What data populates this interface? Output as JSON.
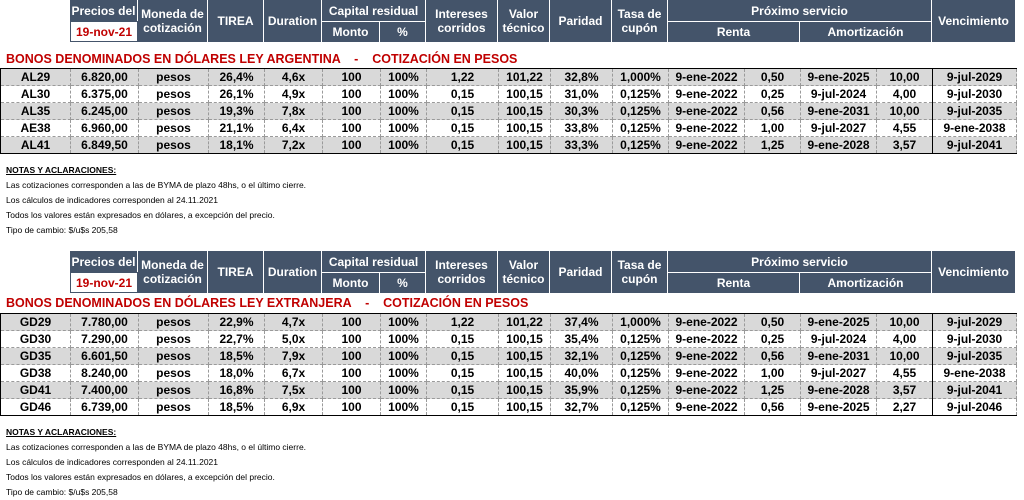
{
  "header": {
    "precios_del": "Precios del",
    "date": "19-nov-21",
    "moneda": "Moneda de cotización",
    "tirea": "TIREA",
    "duration": "Duration",
    "capital_residual": "Capital residual",
    "monto": "Monto",
    "pct": "%",
    "intereses_corridos": "Intereses corridos",
    "valor_tecnico": "Valor técnico",
    "paridad": "Paridad",
    "tasa_cupon": "Tasa de cupón",
    "proximo_servicio": "Próximo servicio",
    "renta": "Renta",
    "amortizacion": "Amortización",
    "vencimiento": "Vencimiento"
  },
  "ley_argentina": {
    "title": "BONOS DENOMINADOS EN DÓLARES LEY ARGENTINA    -    COTIZACIÓN EN PESOS",
    "rows": [
      [
        "AL29",
        "6.820,00",
        "pesos",
        "26,4%",
        "4,6x",
        "100",
        "100%",
        "1,22",
        "101,22",
        "32,8%",
        "1,000%",
        "9-ene-2022",
        "0,50",
        "9-ene-2025",
        "10,00",
        "9-jul-2029"
      ],
      [
        "AL30",
        "6.375,00",
        "pesos",
        "26,1%",
        "4,9x",
        "100",
        "100%",
        "0,15",
        "100,15",
        "31,0%",
        "0,125%",
        "9-ene-2022",
        "0,25",
        "9-jul-2024",
        "4,00",
        "9-jul-2030"
      ],
      [
        "AL35",
        "6.245,00",
        "pesos",
        "19,3%",
        "7,8x",
        "100",
        "100%",
        "0,15",
        "100,15",
        "30,3%",
        "0,125%",
        "9-ene-2022",
        "0,56",
        "9-ene-2031",
        "10,00",
        "9-jul-2035"
      ],
      [
        "AE38",
        "6.960,00",
        "pesos",
        "21,1%",
        "6,4x",
        "100",
        "100%",
        "0,15",
        "100,15",
        "33,8%",
        "0,125%",
        "9-ene-2022",
        "1,00",
        "9-jul-2027",
        "4,55",
        "9-ene-2038"
      ],
      [
        "AL41",
        "6.849,50",
        "pesos",
        "18,1%",
        "7,2x",
        "100",
        "100%",
        "0,15",
        "100,15",
        "33,3%",
        "0,125%",
        "9-ene-2022",
        "1,25",
        "9-ene-2028",
        "3,57",
        "9-jul-2041"
      ]
    ],
    "notes": [
      "NOTAS Y ACLARACIONES:",
      "Las cotizaciones corresponden a las de BYMA de plazo 48hs, o el último cierre.",
      "Los cálculos de indicadores corresponden al 24.11.2021",
      "Todos los valores están expresados en dólares, a excepción del precio.",
      "Tipo de cambio: $/u$s 205,58"
    ]
  },
  "ley_extranjera": {
    "title": "BONOS DENOMINADOS EN DÓLARES LEY EXTRANJERA    -    COTIZACIÓN EN PESOS",
    "rows": [
      [
        "GD29",
        "7.780,00",
        "pesos",
        "22,9%",
        "4,7x",
        "100",
        "100%",
        "1,22",
        "101,22",
        "37,4%",
        "1,000%",
        "9-ene-2022",
        "0,50",
        "9-ene-2025",
        "10,00",
        "9-jul-2029"
      ],
      [
        "GD30",
        "7.290,00",
        "pesos",
        "22,7%",
        "5,0x",
        "100",
        "100%",
        "0,15",
        "100,15",
        "35,4%",
        "0,125%",
        "9-ene-2022",
        "0,25",
        "9-jul-2024",
        "4,00",
        "9-jul-2030"
      ],
      [
        "GD35",
        "6.601,50",
        "pesos",
        "18,5%",
        "7,9x",
        "100",
        "100%",
        "0,15",
        "100,15",
        "32,1%",
        "0,125%",
        "9-ene-2022",
        "0,56",
        "9-ene-2031",
        "10,00",
        "9-jul-2035"
      ],
      [
        "GD38",
        "8.240,00",
        "pesos",
        "18,0%",
        "6,7x",
        "100",
        "100%",
        "0,15",
        "100,15",
        "40,0%",
        "0,125%",
        "9-ene-2022",
        "1,00",
        "9-jul-2027",
        "4,55",
        "9-ene-2038"
      ],
      [
        "GD41",
        "7.400,00",
        "pesos",
        "16,8%",
        "7,5x",
        "100",
        "100%",
        "0,15",
        "100,15",
        "35,9%",
        "0,125%",
        "9-ene-2022",
        "1,25",
        "9-ene-2028",
        "3,57",
        "9-jul-2041"
      ],
      [
        "GD46",
        "6.739,00",
        "pesos",
        "18,5%",
        "6,9x",
        "100",
        "100%",
        "0,15",
        "100,15",
        "32,7%",
        "0,125%",
        "9-ene-2022",
        "0,56",
        "9-ene-2025",
        "2,27",
        "9-jul-2046"
      ]
    ],
    "notes": [
      "NOTAS Y ACLARACIONES:",
      "Las cotizaciones corresponden a las de BYMA de plazo 48hs, o el último cierre.",
      "Los cálculos de indicadores corresponden al 24.11.2021",
      "Todos los valores están expresados en dólares, a excepción del precio.",
      "Tipo de cambio: $/u$s 205,58"
    ]
  }
}
